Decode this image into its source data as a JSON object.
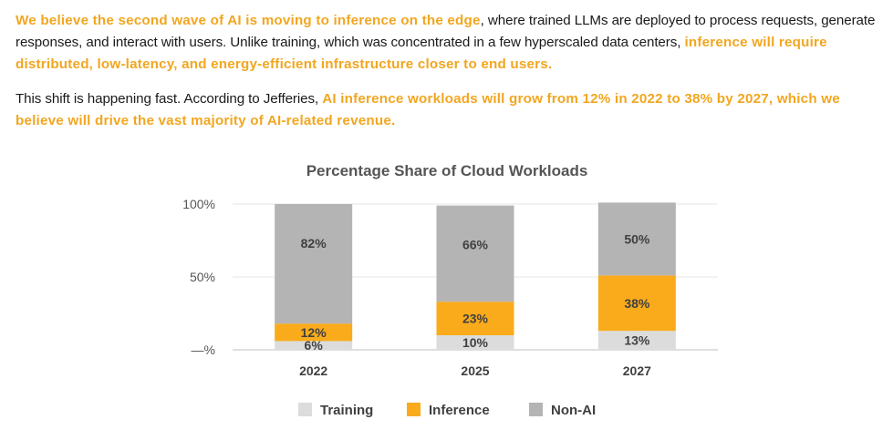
{
  "intro": {
    "p1": [
      {
        "text": "We believe the second wave of AI is moving to inference on the edge",
        "highlight": true
      },
      {
        "text": ", where trained LLMs are deployed to process requests, generate responses, and interact with users. Unlike training, which was concentrated in a few hyperscaled data centers, ",
        "highlight": false
      },
      {
        "text": "inference will require distributed, low-latency, and energy-efficient infrastructure closer to end users.",
        "highlight": true
      }
    ],
    "p2": [
      {
        "text": "This shift is happening fast. According to Jefferies, ",
        "highlight": false
      },
      {
        "text": "AI inference workloads will grow from 12% in 2022 to 38% by 2027, which we believe will drive the vast majority of AI-related revenue.",
        "highlight": true
      }
    ]
  },
  "colors": {
    "highlight": "#f2a61f",
    "training": "#dcdcdc",
    "inference": "#f9ab1b",
    "non_ai": "#b4b4b4",
    "grid": "#e6e6e6"
  },
  "chart_data": {
    "type": "bar",
    "stacked": true,
    "title": "Percentage Share of Cloud Workloads",
    "categories": [
      "2022",
      "2025",
      "2027"
    ],
    "series": [
      {
        "name": "Training",
        "values": [
          6,
          10,
          13
        ],
        "labels": [
          "6%",
          "10%",
          "13%"
        ],
        "color": "#dcdcdc"
      },
      {
        "name": "Inference",
        "values": [
          12,
          23,
          38
        ],
        "labels": [
          "12%",
          "23%",
          "38%"
        ],
        "color": "#f9ab1b"
      },
      {
        "name": "Non-AI",
        "values": [
          82,
          66,
          50
        ],
        "labels": [
          "82%",
          "66%",
          "50%"
        ],
        "color": "#b4b4b4"
      }
    ],
    "yticks": [
      {
        "value": 100,
        "label": "100%"
      },
      {
        "value": 50,
        "label": "50%"
      },
      {
        "value": 0,
        "label": "—%"
      }
    ],
    "ylim": [
      0,
      100
    ],
    "grid": true,
    "legend": "bottom",
    "xlabel": "",
    "ylabel": ""
  }
}
